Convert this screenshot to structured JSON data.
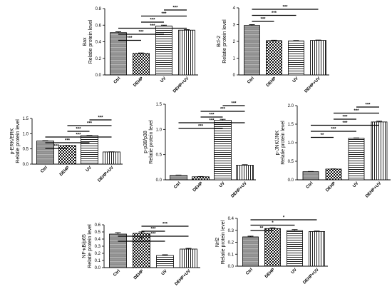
{
  "chart_data": [
    {
      "id": "bax",
      "type": "bar",
      "ylabel": [
        "Bax",
        "Relatie protein level"
      ],
      "categories": [
        "Ctrl",
        "DEHP",
        "UV",
        "DEHP+UV"
      ],
      "values": [
        0.51,
        0.26,
        0.59,
        0.54
      ],
      "errors": [
        0.01,
        0.005,
        0.01,
        0.007
      ],
      "ylim": [
        0,
        0.8
      ],
      "yticks": [
        "0.0",
        "0.2",
        "0.4",
        "0.6",
        "0.8"
      ],
      "significance": [
        {
          "from": 0,
          "to": 1,
          "label": "***"
        },
        {
          "from": 0,
          "to": 2,
          "label": "***"
        },
        {
          "from": 0,
          "to": 3,
          "label": "***"
        },
        {
          "from": 1,
          "to": 2,
          "label": "***"
        },
        {
          "from": 1,
          "to": 3,
          "label": "***"
        },
        {
          "from": 2,
          "to": 3,
          "label": "***"
        }
      ]
    },
    {
      "id": "bcl2",
      "type": "bar",
      "ylabel": [
        "Bcl-2",
        "Relatie protein level"
      ],
      "categories": [
        "Ctrl",
        "DEHP",
        "UV",
        "DEHP+UV"
      ],
      "values": [
        2.95,
        2.05,
        2.03,
        2.06
      ],
      "errors": [
        0.05,
        0.02,
        0.02,
        0.02
      ],
      "ylim": [
        0,
        4
      ],
      "yticks": [
        "0",
        "1",
        "2",
        "3",
        "4"
      ],
      "significance": [
        {
          "from": 0,
          "to": 1,
          "label": "***"
        },
        {
          "from": 0,
          "to": 2,
          "label": "***"
        },
        {
          "from": 0,
          "to": 3,
          "label": "***"
        }
      ]
    },
    {
      "id": "perk",
      "type": "bar",
      "ylabel": [
        "p-ERK/ERK",
        "Relatie protein level"
      ],
      "categories": [
        "Ctrl",
        "DEHP",
        "UV",
        "DEHP+UV"
      ],
      "values": [
        0.76,
        0.61,
        0.94,
        0.4
      ],
      "errors": [
        0.01,
        0.005,
        0.01,
        0.005
      ],
      "ylim": [
        0,
        1.5
      ],
      "yticks": [
        "0.0",
        "0.5",
        "1.0",
        "1.5"
      ],
      "significance": [
        {
          "from": 0,
          "to": 1,
          "label": "***"
        },
        {
          "from": 0,
          "to": 2,
          "label": "***"
        },
        {
          "from": 0,
          "to": 3,
          "label": "***"
        },
        {
          "from": 1,
          "to": 2,
          "label": "***"
        },
        {
          "from": 1,
          "to": 3,
          "label": "***"
        },
        {
          "from": 2,
          "to": 3,
          "label": "***"
        }
      ]
    },
    {
      "id": "pp38",
      "type": "bar",
      "ylabel": [
        "p-p38/p38",
        "Relatie protein level"
      ],
      "categories": [
        "Ctrl",
        "DEHP",
        "UV",
        "DEHP+UV"
      ],
      "values": [
        0.09,
        0.06,
        1.18,
        0.29
      ],
      "errors": [
        0.005,
        0.005,
        0.02,
        0.01
      ],
      "ylim": [
        0,
        1.5
      ],
      "yticks": [
        "0.0",
        "0.5",
        "1.0",
        "1.5"
      ],
      "significance": [
        {
          "from": 0,
          "to": 2,
          "label": "***"
        },
        {
          "from": 0,
          "to": 3,
          "label": "***"
        },
        {
          "from": 1,
          "to": 2,
          "label": "***"
        },
        {
          "from": 1,
          "to": 3,
          "label": "***"
        },
        {
          "from": 2,
          "to": 3,
          "label": "***"
        }
      ]
    },
    {
      "id": "pjnk",
      "type": "bar",
      "ylabel": [
        "p-JNK/JNK",
        "Relatie protein level"
      ],
      "categories": [
        "Ctrl",
        "DEHP",
        "UV",
        "DEHP+UV"
      ],
      "values": [
        0.22,
        0.29,
        1.12,
        1.56
      ],
      "errors": [
        0.005,
        0.005,
        0.01,
        0.02
      ],
      "ylim": [
        0,
        2.0
      ],
      "yticks": [
        "0.0",
        "0.5",
        "1.0",
        "1.5",
        "2.0"
      ],
      "significance": [
        {
          "from": 0,
          "to": 1,
          "label": "**"
        },
        {
          "from": 0,
          "to": 2,
          "label": "***"
        },
        {
          "from": 0,
          "to": 3,
          "label": "***"
        },
        {
          "from": 1,
          "to": 2,
          "label": "***"
        },
        {
          "from": 1,
          "to": 3,
          "label": "***"
        },
        {
          "from": 2,
          "to": 3,
          "label": "***"
        }
      ]
    },
    {
      "id": "nfkb",
      "type": "bar",
      "ylabel": [
        "NF-κB/p65",
        "Relatie protein level"
      ],
      "categories": [
        "Ctrl",
        "DEHP",
        "UV",
        "DEHP+UV"
      ],
      "values": [
        0.47,
        0.48,
        0.17,
        0.26
      ],
      "errors": [
        0.02,
        0.02,
        0.01,
        0.01
      ],
      "ylim": [
        0,
        0.6
      ],
      "yticks": [
        "0.0",
        "0.1",
        "0.2",
        "0.3",
        "0.4",
        "0.5",
        "0.6"
      ],
      "significance": [
        {
          "from": 0,
          "to": 2,
          "label": "***"
        },
        {
          "from": 0,
          "to": 3,
          "label": "***"
        },
        {
          "from": 1,
          "to": 2,
          "label": "***"
        },
        {
          "from": 1,
          "to": 3,
          "label": "***"
        }
      ]
    },
    {
      "id": "nrf2",
      "type": "bar",
      "ylabel": [
        "Nrf2",
        "Relatie protein level"
      ],
      "categories": [
        "Ctrl",
        "DEHP",
        "UV",
        "DEHP+UV"
      ],
      "values": [
        0.245,
        0.315,
        0.298,
        0.29
      ],
      "errors": [
        0.006,
        0.006,
        0.008,
        0.004
      ],
      "ylim": [
        0,
        0.4
      ],
      "yticks": [
        "0.0",
        "0.1",
        "0.2",
        "0.3",
        "0.4"
      ],
      "significance": [
        {
          "from": 0,
          "to": 1,
          "label": "**"
        },
        {
          "from": 0,
          "to": 2,
          "label": "*"
        },
        {
          "from": 0,
          "to": 3,
          "label": "*"
        }
      ]
    }
  ]
}
